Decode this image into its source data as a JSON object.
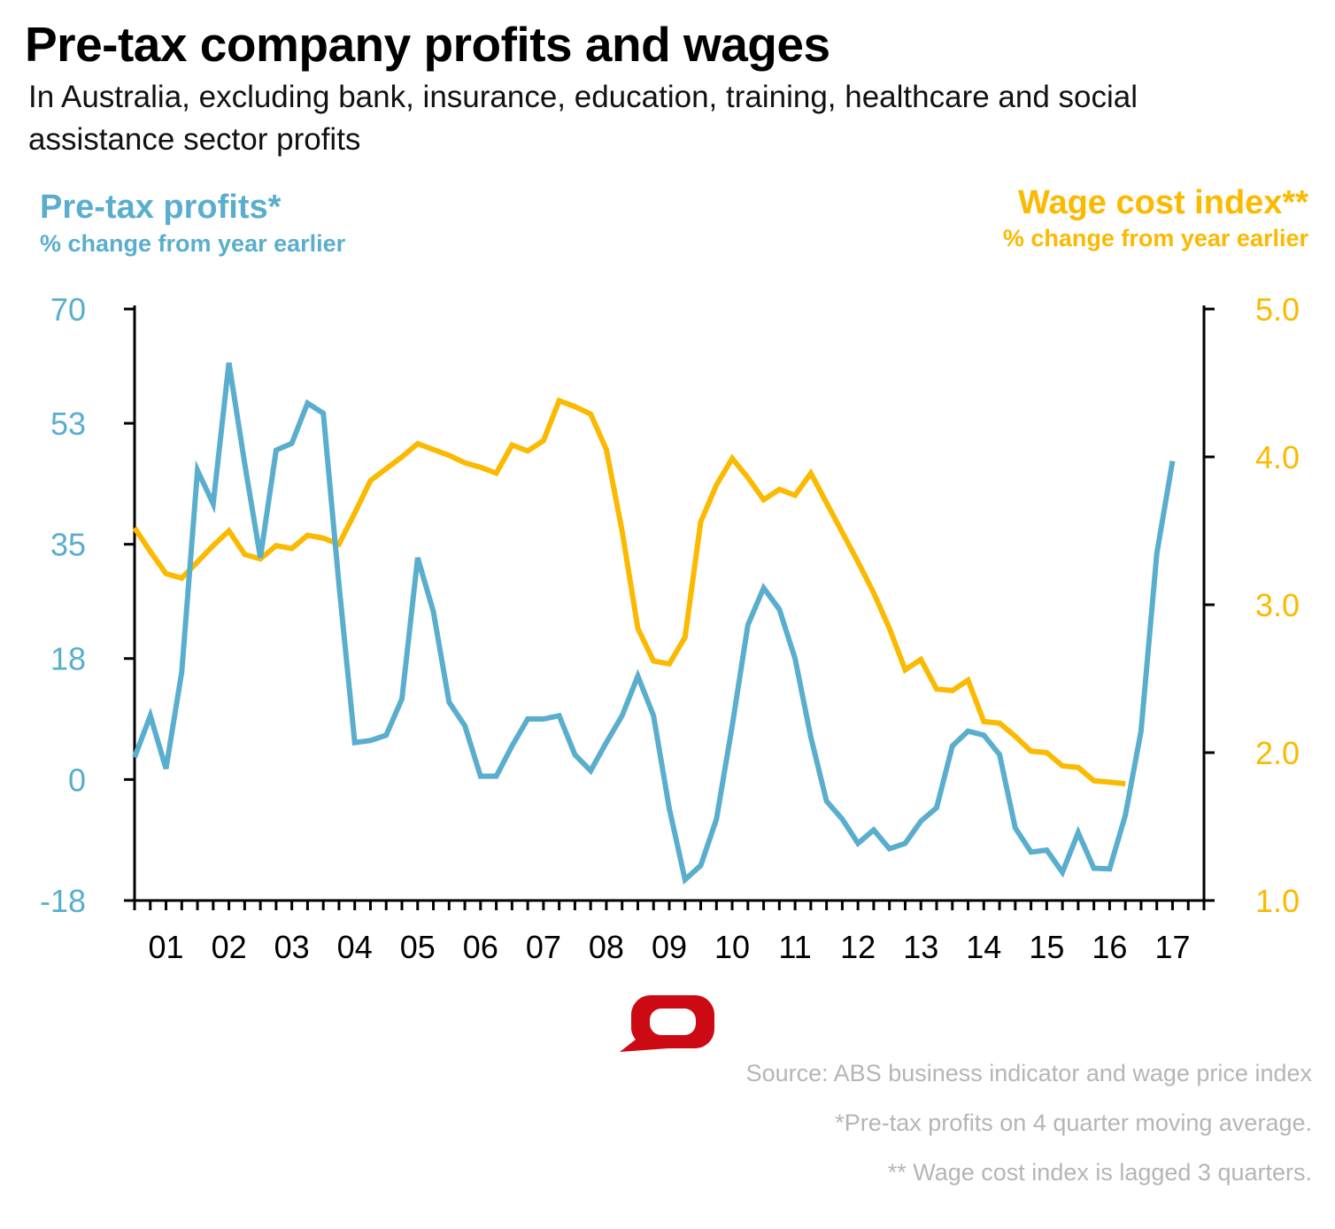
{
  "chart_data": {
    "type": "line",
    "title": "Pre-tax company profits and wages",
    "subtitle": "In Australia, excluding bank, insurance, education, training, healthcare and social assistance sector profits",
    "left_axis": {
      "title": "Pre-tax profits*",
      "unit": "% change from year earlier",
      "ticks": [
        "70",
        "53",
        "35",
        "18",
        "0",
        "-18"
      ],
      "ylim": [
        -18,
        70
      ],
      "color": "#5aaecd"
    },
    "right_axis": {
      "title": "Wage cost index**",
      "unit": "% change from year earlier",
      "ticks": [
        "5.0",
        "4.0",
        "3.0",
        "2.0",
        "1.0"
      ],
      "ylim": [
        1.0,
        5.0
      ],
      "color": "#fbb900"
    },
    "x_ticks": [
      "01",
      "02",
      "03",
      "04",
      "05",
      "06",
      "07",
      "08",
      "09",
      "10",
      "11",
      "12",
      "13",
      "14",
      "15",
      "16",
      "17"
    ],
    "xlim": [
      2001,
      2018
    ],
    "grid": false,
    "x_frequency": "quarterly",
    "series": [
      {
        "axis": "left",
        "color": "#5aaecd",
        "start": 2001.0,
        "values": [
          3.3,
          9.5,
          1.6,
          16,
          46,
          41,
          62,
          47,
          33,
          49,
          50,
          56,
          54.5,
          29,
          5.5,
          5.8,
          6.6,
          12,
          33,
          25,
          11.5,
          8,
          0.5,
          0.5,
          5,
          9,
          9,
          9.5,
          3.7,
          1.3,
          5.5,
          9.5,
          15.4,
          9.5,
          -4.3,
          -14.9,
          -12.8,
          -5.9,
          8,
          23,
          28.5,
          25.3,
          18,
          6.3,
          -3.2,
          -5.9,
          -9.5,
          -7.5,
          -10.3,
          -9.5,
          -6.2,
          -4.2,
          5,
          7.2,
          6.6,
          3.7,
          -7.2,
          -10.8,
          -10.5,
          -13.8,
          -7.9,
          -13.2,
          -13.3,
          -5.3,
          7.2,
          33.6,
          47.4
        ]
      },
      {
        "axis": "right",
        "color": "#fbb900",
        "start": 2001.0,
        "values": [
          3.52,
          3.36,
          3.21,
          3.18,
          3.29,
          3.4,
          3.5,
          3.34,
          3.31,
          3.4,
          3.38,
          3.47,
          3.45,
          3.41,
          3.62,
          3.84,
          3.92,
          4.0,
          4.09,
          4.05,
          4.01,
          3.96,
          3.93,
          3.89,
          4.08,
          4.04,
          4.11,
          4.38,
          4.34,
          4.29,
          4.05,
          3.5,
          2.84,
          2.62,
          2.6,
          2.78,
          3.56,
          3.81,
          3.99,
          3.86,
          3.71,
          3.78,
          3.74,
          3.89,
          3.69,
          3.49,
          3.29,
          3.08,
          2.84,
          2.56,
          2.63,
          2.43,
          2.42,
          2.49,
          2.21,
          2.2,
          2.11,
          2.01,
          2.0,
          1.91,
          1.9,
          1.81,
          1.8,
          1.79
        ]
      }
    ]
  },
  "footer": {
    "source": "Source: ABS business indicator and wage price index",
    "note1": "*Pre-tax profits on 4 quarter moving average.",
    "note2": "** Wage cost index is lagged 3 quarters."
  },
  "logo_color": "#cc0a14"
}
